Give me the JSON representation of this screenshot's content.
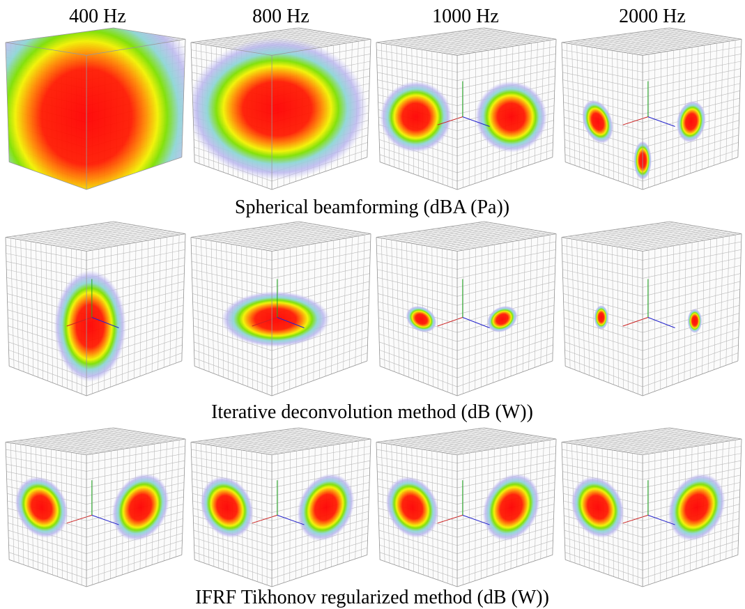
{
  "column_headers": [
    "400 Hz",
    "800 Hz",
    "1000 Hz",
    "2000 Hz"
  ],
  "row_captions": [
    "Spherical beamforming (dBA (Pa))",
    "Iterative deconvolution method (dB (W))",
    "IFRF Tikhonov regularized method (dB (W))"
  ]
}
